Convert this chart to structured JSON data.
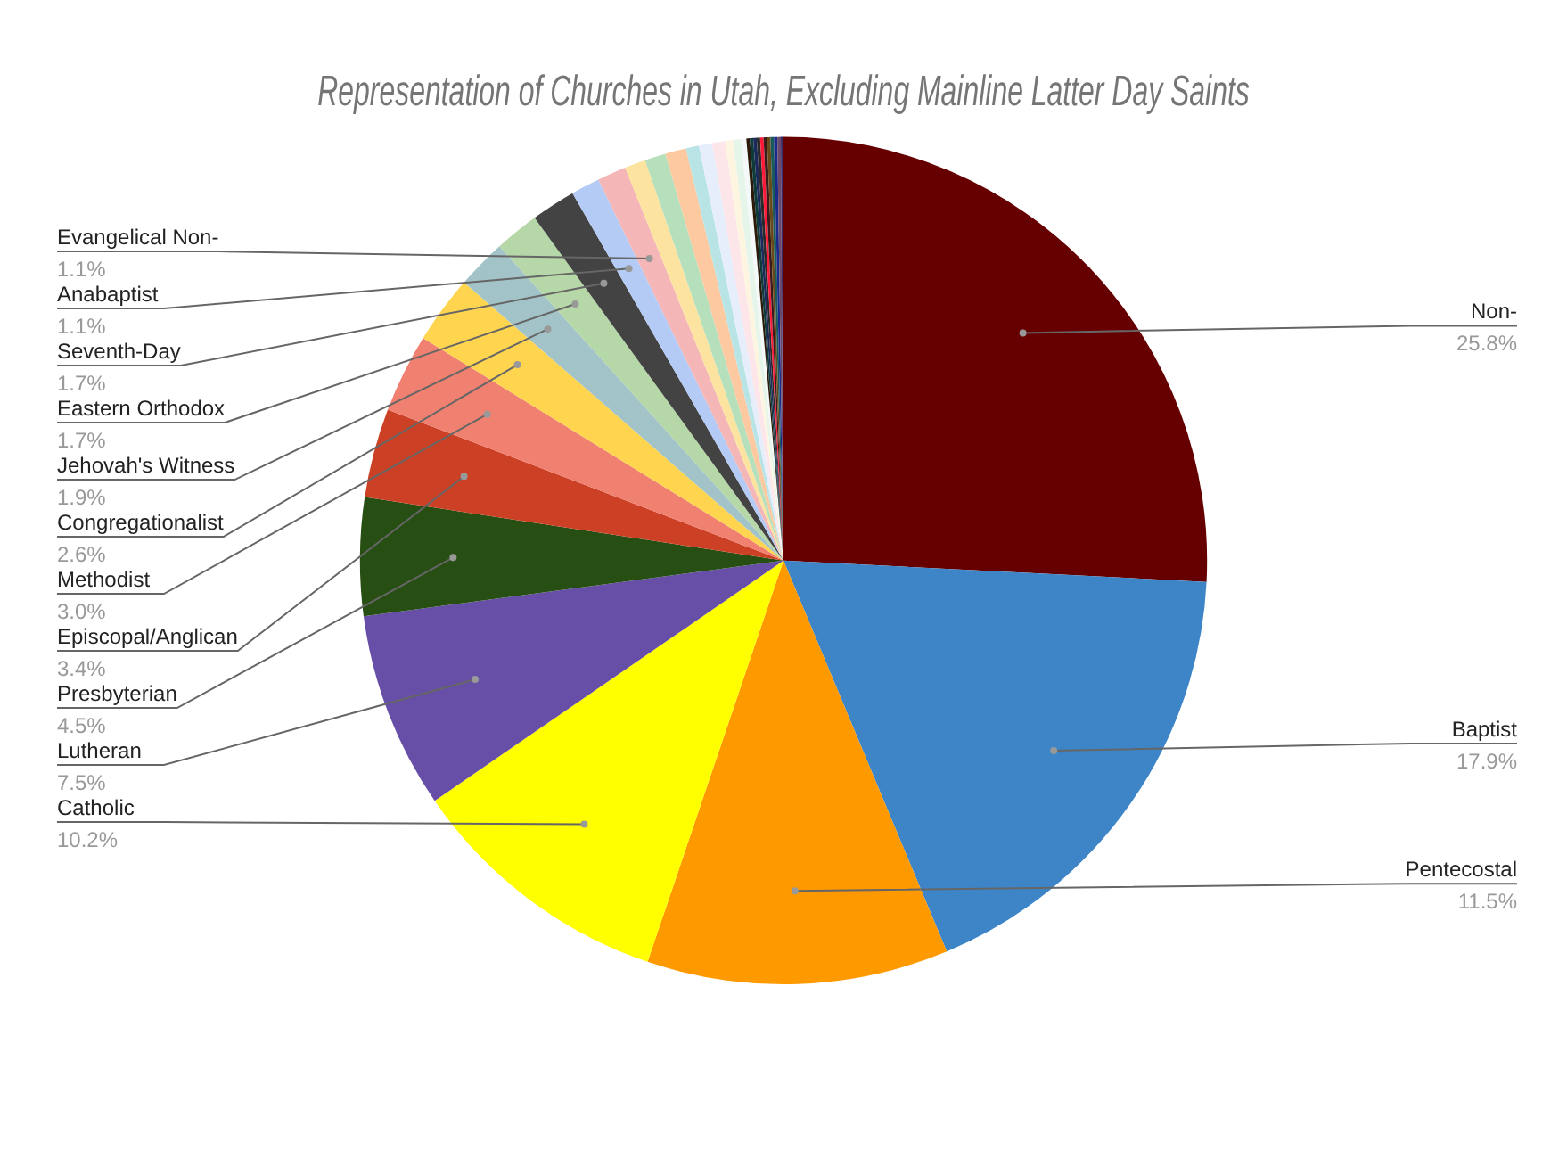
{
  "chart_data": {
    "type": "pie",
    "title": "Representation of Churches in Utah, Excluding Mainline Latter Day Saints",
    "categories": [
      "Non-",
      "Baptist",
      "Pentecostal",
      "Catholic",
      "Lutheran",
      "Presbyterian",
      "Episcopal/Anglican",
      "Methodist",
      "Congregationalist",
      "Jehovah's Witness",
      "Eastern Orthodox",
      "Seventh-Day",
      "Anabaptist",
      "Evangelical Non-",
      null,
      null,
      null,
      null,
      null,
      null,
      null,
      null,
      null,
      null,
      null,
      null,
      null,
      null,
      null,
      null,
      null,
      null,
      null,
      null
    ],
    "values": [
      25.8,
      17.9,
      11.5,
      10.2,
      7.5,
      4.5,
      3.4,
      3.0,
      2.6,
      1.9,
      1.7,
      1.7,
      1.1,
      1.1,
      0.8,
      0.8,
      0.8,
      0.5,
      0.5,
      0.5,
      0.3,
      0.3,
      0.2,
      0.13,
      0.13,
      0.13,
      0.13,
      0.13,
      0.13,
      0.13,
      0.13,
      0.13,
      0.13,
      0.1
    ],
    "value_labels": [
      "25.8%",
      "17.9%",
      "11.5%",
      "10.2%",
      "7.5%",
      "4.5%",
      "3.4%",
      "3.0%",
      "2.6%",
      "1.9%",
      "1.7%",
      "1.7%",
      "1.1%",
      "1.1%",
      null,
      null,
      null,
      null,
      null,
      null,
      null,
      null,
      null,
      null,
      null,
      null,
      null,
      null,
      null,
      null,
      null,
      null,
      null,
      null
    ],
    "colors": [
      "#660000",
      "#3d85c6",
      "#ff9900",
      "#ffff00",
      "#674ea7",
      "#274e13",
      "#cc4125",
      "#f08070",
      "#ffd54f",
      "#a2c4c9",
      "#b6d7a8",
      "#434343",
      "#b4cbf5",
      "#f4b6b6",
      "#fde3a0",
      "#b6dfbc",
      "#fcc9a0",
      "#b9e4e6",
      "#e6eefc",
      "#fde6ea",
      "#fdf5e0",
      "#e6f5ea",
      "#f5f8f8",
      "#2b1a0a",
      "#0e3a3a",
      "#1b2a5a",
      "#2a2a2a",
      "#ff1a3a",
      "#3a1a1a",
      "#6b4a1a",
      "#1a5a5a",
      "#1a2a8a",
      "#6a4a6a",
      "#3a2a6a"
    ],
    "legend": false
  }
}
